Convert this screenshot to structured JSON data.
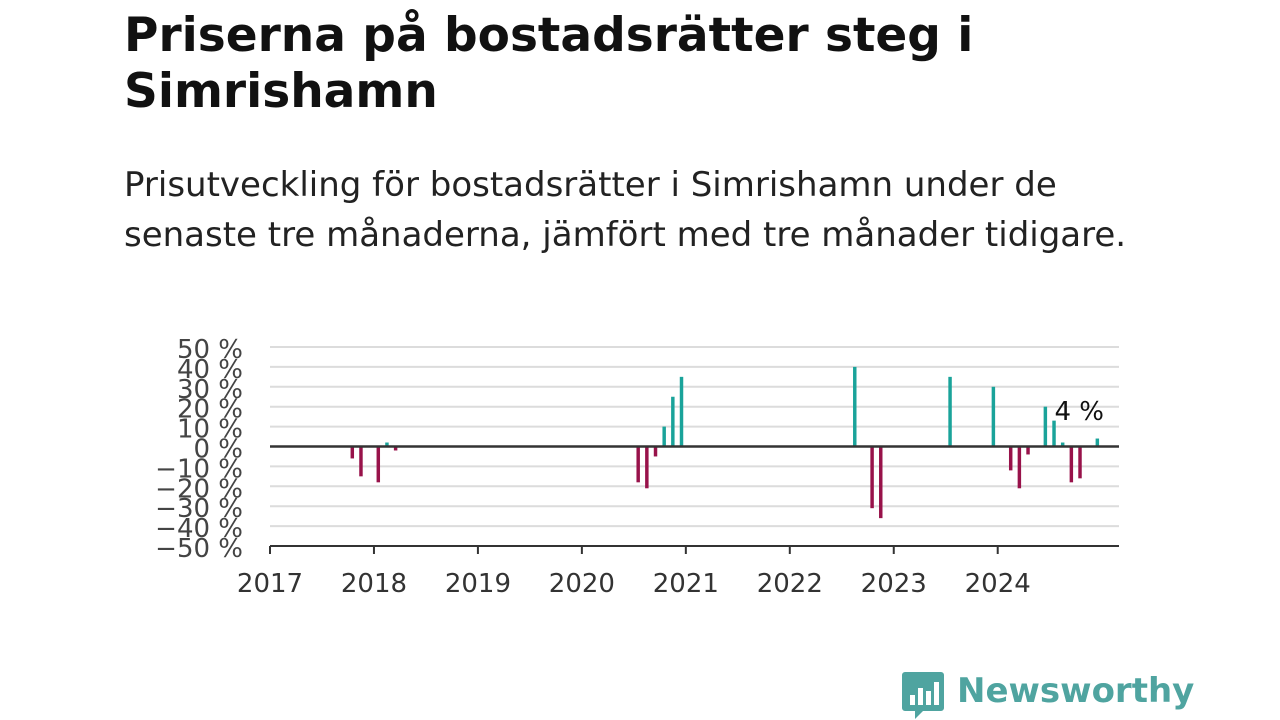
{
  "title": "Priserna på bostadsrätter steg i Simrishamn",
  "subtitle": "Prisutveckling för bostadsrätter i Simrishamn under de senaste tre månaderna, jämfört med tre månader tidigare.",
  "logo_text": "Newsworthy",
  "colors": {
    "positive": "#1aa39a",
    "negative": "#98124a",
    "brand": "#4fa4a0"
  },
  "chart_data": {
    "type": "bar",
    "xlim": [
      "2017-01",
      "2025-03"
    ],
    "ylim": [
      -50,
      50
    ],
    "yticks": [
      50,
      40,
      30,
      20,
      10,
      0,
      -10,
      -20,
      -30,
      -40,
      -50
    ],
    "ytick_labels": [
      "50 %",
      "40 %",
      "30 %",
      "20 %",
      "10 %",
      "0 %",
      "−10 %",
      "−20 %",
      "−30 %",
      "−40 %",
      "−50 %"
    ],
    "xtick_labels": [
      "2017",
      "2018",
      "2019",
      "2020",
      "2021",
      "2022",
      "2023",
      "2024"
    ],
    "grid": true,
    "annotation": "4 %",
    "values": [
      {
        "x": "2017-10",
        "y": -6
      },
      {
        "x": "2017-11",
        "y": -15
      },
      {
        "x": "2018-01",
        "y": -18
      },
      {
        "x": "2018-02",
        "y": 2
      },
      {
        "x": "2018-03",
        "y": -2
      },
      {
        "x": "2020-07",
        "y": -18
      },
      {
        "x": "2020-08",
        "y": -21
      },
      {
        "x": "2020-09",
        "y": -5
      },
      {
        "x": "2020-10",
        "y": 10
      },
      {
        "x": "2020-11",
        "y": 25
      },
      {
        "x": "2020-12",
        "y": 35
      },
      {
        "x": "2022-08",
        "y": 40
      },
      {
        "x": "2022-10",
        "y": -31
      },
      {
        "x": "2022-11",
        "y": -36
      },
      {
        "x": "2023-07",
        "y": 35
      },
      {
        "x": "2023-12",
        "y": 30
      },
      {
        "x": "2024-02",
        "y": -12
      },
      {
        "x": "2024-03",
        "y": -21
      },
      {
        "x": "2024-04",
        "y": -4
      },
      {
        "x": "2024-06",
        "y": 20
      },
      {
        "x": "2024-07",
        "y": 13
      },
      {
        "x": "2024-08",
        "y": 2
      },
      {
        "x": "2024-09",
        "y": -18
      },
      {
        "x": "2024-10",
        "y": -16
      },
      {
        "x": "2024-12",
        "y": 4
      }
    ]
  }
}
